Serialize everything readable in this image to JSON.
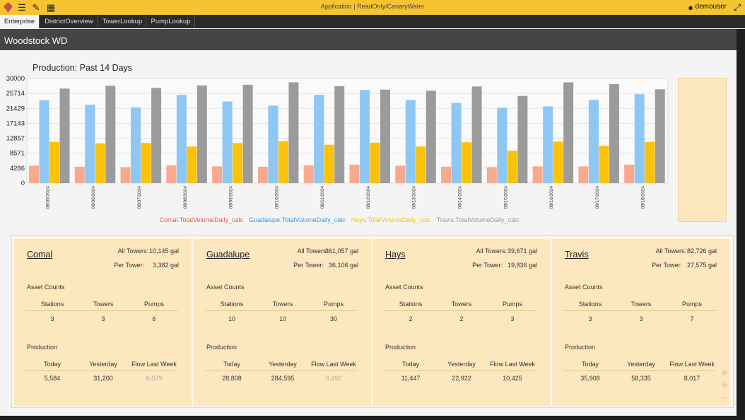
{
  "topbar": {
    "title": "Application | ReadOnly/CanaryWater",
    "user": "demouser",
    "icons": [
      "logo-icon",
      "menu-icon",
      "edit-icon",
      "calculator-icon",
      "user-icon",
      "collapse-icon"
    ]
  },
  "tabs": [
    {
      "label": "Enterprise",
      "active": true
    },
    {
      "label": "DistrictOverview",
      "active": false
    },
    {
      "label": "TowerLookup",
      "active": false
    },
    {
      "label": "PumpLookup",
      "active": false
    }
  ],
  "page_title": "Woodstock WD",
  "chart_data": {
    "type": "bar",
    "title": "Production: Past 14 Days",
    "categories": [
      "08/05/2024",
      "08/06/2024",
      "08/07/2024",
      "08/08/2024",
      "08/09/2024",
      "08/10/2024",
      "08/11/2024",
      "08/12/2024",
      "08/13/2024",
      "08/14/2024",
      "08/15/2024",
      "08/16/2024",
      "08/17/2024",
      "08/18/2024"
    ],
    "yticks": [
      0,
      4286,
      8571,
      12857,
      17143,
      21429,
      25714,
      30000
    ],
    "ylim": [
      0,
      30000
    ],
    "series": [
      {
        "name": "Comal.TotalVolumeDaily_calc",
        "color": "#f9a98e",
        "values": [
          5000,
          4700,
          4600,
          5100,
          4800,
          4700,
          5100,
          5300,
          5000,
          4700,
          4600,
          4800,
          4800,
          5300
        ]
      },
      {
        "name": "Guadalupe.TotalVolumeDaily_calc",
        "color": "#8ec6f4",
        "values": [
          23800,
          22500,
          21700,
          25300,
          23400,
          22200,
          25300,
          26700,
          23800,
          23000,
          21600,
          22000,
          23900,
          25500
        ]
      },
      {
        "name": "Hays.TotalVolumeDaily_calc",
        "color": "#fbc20a",
        "values": [
          11800,
          11400,
          11500,
          10500,
          11500,
          12000,
          11000,
          11600,
          10500,
          11700,
          9300,
          11900,
          10700,
          11800
        ]
      },
      {
        "name": "Travis.TotalVolumeDaily_calc",
        "color": "#9b9b9b",
        "values": [
          27100,
          27900,
          27300,
          28000,
          28200,
          28900,
          27800,
          26800,
          26500,
          27700,
          25000,
          28900,
          28400,
          26900
        ]
      }
    ],
    "legend_position": "bottom",
    "grid": true
  },
  "cards": [
    {
      "name": "Comal",
      "all_towers_label": "All Towers:",
      "all_towers": "10,145 gal",
      "per_tower_label": "Per Tower:",
      "per_tower": "3,382 gal",
      "asset_label": "Asset Counts",
      "asset_headers": [
        "Stations",
        "Towers",
        "Pumps"
      ],
      "asset_values": [
        "3",
        "3",
        "6"
      ],
      "prod_label": "Production",
      "prod_headers": [
        "Today",
        "Yesterday",
        "Flow Last Week"
      ],
      "prod_values": [
        "5,584",
        "31,200",
        "6,079"
      ],
      "last_muted": true
    },
    {
      "name": "Guadalupe",
      "all_towers_label": "All Towers:",
      "all_towers": "361,057 gal",
      "per_tower_label": "Per Tower:",
      "per_tower": "36,106 gal",
      "asset_label": "Asset Counts",
      "asset_headers": [
        "Stations",
        "Towers",
        "Pumps"
      ],
      "asset_values": [
        "10",
        "10",
        "30"
      ],
      "prod_label": "Production",
      "prod_headers": [
        "Today",
        "Yesterday",
        "Flow Last Week"
      ],
      "prod_values": [
        "28,808",
        "284,595",
        "9,492"
      ],
      "last_muted": true
    },
    {
      "name": "Hays",
      "all_towers_label": "All Towers:",
      "all_towers": "39,671 gal",
      "per_tower_label": "Per Tower:",
      "per_tower": "19,836 gal",
      "asset_label": "Asset Counts",
      "asset_headers": [
        "Stations",
        "Towers",
        "Pumps"
      ],
      "asset_values": [
        "2",
        "2",
        "3"
      ],
      "prod_label": "Production",
      "prod_headers": [
        "Today",
        "Yesterday",
        "Flow Last Week"
      ],
      "prod_values": [
        "11,447",
        "22,922",
        "10,425"
      ],
      "last_muted": false
    },
    {
      "name": "Travis",
      "all_towers_label": "All Towers:",
      "all_towers": "82,726 gal",
      "per_tower_label": "Per Tower:",
      "per_tower": "27,575 gal",
      "asset_label": "Asset Counts",
      "asset_headers": [
        "Stations",
        "Towers",
        "Pumps"
      ],
      "asset_values": [
        "3",
        "3",
        "7"
      ],
      "prod_label": "Production",
      "prod_headers": [
        "Today",
        "Yesterday",
        "Flow Last Week"
      ],
      "prod_values": [
        "35,908",
        "58,335",
        "8,017"
      ],
      "last_muted": false
    }
  ],
  "zoom_controls": [
    "zoom-in-icon",
    "zoom-out-icon",
    "fit-width-icon"
  ]
}
